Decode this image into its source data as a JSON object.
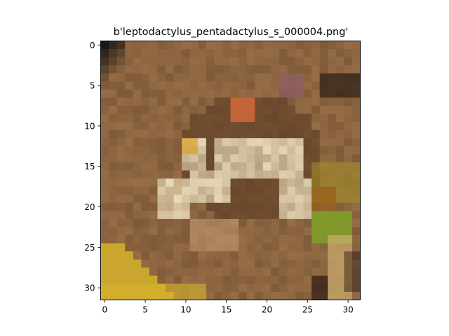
{
  "figure": {
    "title": "b'leptodactylus_pentadactylus_s_000004.png'",
    "x_ticks": [
      "0",
      "5",
      "10",
      "15",
      "20",
      "25",
      "30"
    ],
    "y_ticks": [
      "0",
      "5",
      "10",
      "15",
      "20",
      "25",
      "30"
    ]
  },
  "chart_data": {
    "type": "heatmap",
    "title": "b'leptodactylus_pentadactylus_s_000004.png'",
    "xlabel": "",
    "ylabel": "",
    "xlim": [
      -0.5,
      31.5
    ],
    "ylim": [
      31.5,
      -0.5
    ],
    "grid": false,
    "image_size": [
      32,
      32
    ],
    "x_tick_values": [
      0,
      5,
      10,
      15,
      20,
      25,
      30
    ],
    "y_tick_values": [
      0,
      5,
      10,
      15,
      20,
      25,
      30
    ],
    "colors": {
      "background": "#8d6540",
      "dark_corner": "#1c1814",
      "frog_brown": "#5a3a22",
      "frog_highlight": "#f2e6c4",
      "frog_orange": "#d2693a",
      "yellow_streak": "#d8b42a",
      "green_leaf": "#7fa028",
      "olive": "#a08c2a",
      "purple": "#8a5a6a"
    }
  }
}
